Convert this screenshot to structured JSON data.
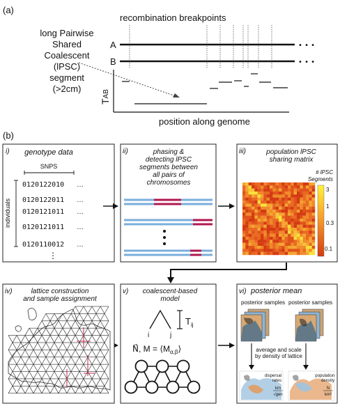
{
  "panel_a": {
    "label": "(a)",
    "breakpoints_label": "recombination breakpoints",
    "segment_label_lines": [
      "long Pairwise",
      "Shared",
      "Coalescent",
      "(lPSC)",
      "segment",
      "(>2cm)"
    ],
    "chromosome_a": "A",
    "chromosome_b": "B",
    "ellipsis": "• • •",
    "y_axis_label": "T",
    "y_axis_subscript": "AB",
    "x_axis_label": "position along genome"
  },
  "panel_b": {
    "label": "(b)",
    "genotype": {
      "title": "genotype data",
      "numeral": "i)",
      "snps_label": "SNPS",
      "individuals_label": "individuals",
      "rows": [
        "0120122010",
        "0120122011",
        "0120121011",
        "0120121011",
        "0120110012"
      ],
      "row_ellipsis": "…",
      "vertical_ellipsis": "⋮"
    },
    "phasing": {
      "numeral": "ii)",
      "title_lines": [
        "phasing &",
        "detecting lPSC",
        "segments between",
        "all pairs of",
        "chromosomes"
      ]
    },
    "matrix": {
      "numeral": "iii)",
      "title_lines": [
        "population lPSC",
        "sharing matrix"
      ],
      "legend_title_lines": [
        "# lPSC",
        "Segments"
      ],
      "ticks": [
        "3",
        "1",
        "0.3",
        "0.1"
      ]
    },
    "lattice": {
      "numeral": "iv)",
      "title_lines": [
        "lattice construction",
        "and sample assignment"
      ]
    },
    "coalescent": {
      "numeral": "v)",
      "title_lines": [
        "coalescent-based",
        "model"
      ],
      "tip_i": "i",
      "tip_j": "j",
      "time_label": "T",
      "time_subscript": "ij",
      "formula": "N⃗, M = ⟨M",
      "formula_subscript": "α,β",
      "formula_close": "⟩"
    },
    "posterior": {
      "numeral": "vi)",
      "title": "posterior mean",
      "samples_label_left": "posterior samples",
      "samples_label_right": "posterior samples",
      "note_lines": [
        "average and scale",
        "by density of lattice"
      ],
      "dispersal_label_lines": [
        "dispersal",
        "rates"
      ],
      "dispersal_unit_top": "km",
      "dispersal_unit_bottom": "√gen",
      "density_label_lines": [
        "population",
        "density"
      ],
      "density_unit_top": "N",
      "density_unit_bottom": "km²"
    }
  },
  "colors": {
    "chromosome_blue": "#7aaedc",
    "segment_red": "#b0174f",
    "heat_low": "#e35a1c",
    "heat_high": "#fff23a",
    "orange_map": "#e39a5c",
    "blue_map": "#9fc3df"
  }
}
